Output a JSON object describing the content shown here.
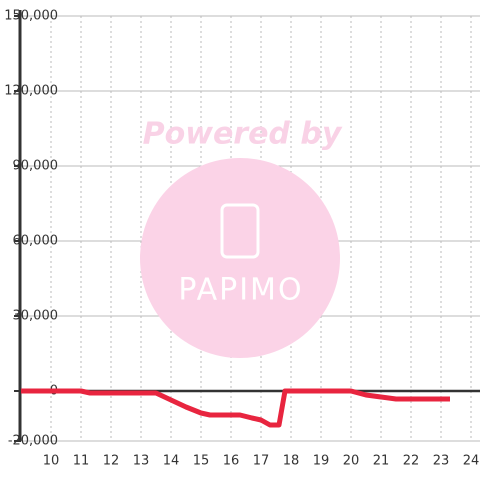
{
  "chart_data": {
    "type": "line",
    "x": [
      9,
      10,
      11,
      11.3,
      12,
      13,
      13.5,
      14,
      14.5,
      15,
      15.3,
      16,
      16.3,
      16.7,
      17,
      17.3,
      17.6,
      17.8,
      18,
      19,
      20,
      20.5,
      21,
      21.5,
      22,
      23,
      23.3
    ],
    "series": [
      {
        "color": "#e8253f",
        "values": [
          0,
          0,
          0,
          -800,
          -800,
          -800,
          -800,
          -3600,
          -6400,
          -8800,
          -9600,
          -9600,
          -9600,
          -10800,
          -11600,
          -13600,
          -13600,
          0,
          0,
          0,
          0,
          -1600,
          -2400,
          -3200,
          -3200,
          -3200,
          -3200
        ]
      }
    ],
    "xlim": [
      9,
      24.3
    ],
    "xticks": [
      10,
      11,
      12,
      13,
      14,
      15,
      16,
      17,
      18,
      19,
      20,
      21,
      22,
      23,
      24
    ],
    "ylim": [
      -20000,
      150000
    ],
    "yticks": [
      {
        "value": -20000,
        "label": "-20,000"
      },
      0,
      {
        "value": 30000,
        "label": "30,000"
      },
      {
        "value": 60000,
        "label": "60,000"
      },
      {
        "value": 90000,
        "label": "90,000"
      },
      {
        "value": 120000,
        "label": "120,000"
      },
      {
        "value": 150000,
        "label": "150,000"
      }
    ],
    "grid": true,
    "watermark": [
      "Powered by",
      "PAPIMO"
    ]
  }
}
